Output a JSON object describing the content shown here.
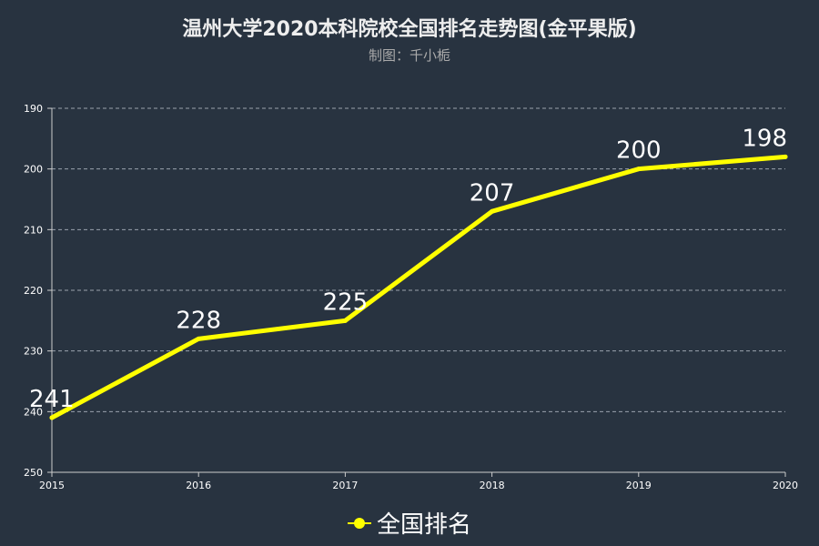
{
  "chart_data": {
    "type": "line",
    "title": "温州大学2020本科院校全国排名走势图(金平果版)",
    "subtitle": "制图：千小栀",
    "categories": [
      "2015",
      "2016",
      "2017",
      "2018",
      "2019",
      "2020"
    ],
    "series": [
      {
        "name": "全国排名",
        "values": [
          241,
          228,
          225,
          207,
          200,
          198
        ],
        "color": "#ffff00"
      }
    ],
    "ylim": [
      190,
      250
    ],
    "y_inverted": true,
    "yticks": [
      190,
      200,
      210,
      220,
      230,
      240,
      250
    ],
    "grid": true,
    "legend_position": "bottom"
  }
}
